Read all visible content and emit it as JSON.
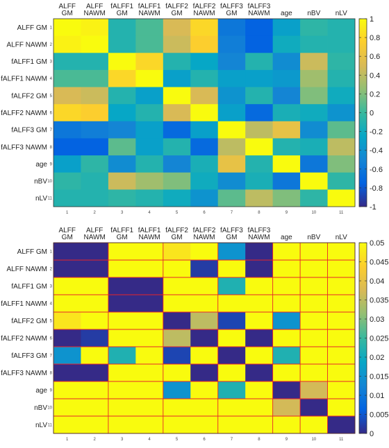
{
  "chart_data": [
    {
      "type": "heatmap",
      "title": "",
      "col_labels": [
        [
          "ALFF",
          "GM"
        ],
        [
          "ALFF",
          "NAWM"
        ],
        [
          "fALFF1",
          "GM"
        ],
        [
          "fALFF1",
          "NAWM"
        ],
        [
          "fALFF2",
          "GM"
        ],
        [
          "fALFF2",
          "NAWM"
        ],
        [
          "fALFF3",
          "GM"
        ],
        [
          "fALFF3",
          "NAWM"
        ],
        [
          "age"
        ],
        [
          "nBV"
        ],
        [
          "nLV"
        ]
      ],
      "row_labels": [
        "ALFF GM",
        "ALFF NAWM",
        "fALFF1 GM",
        "fALFF1 NAWM",
        "fALFF2 GM",
        "fALFF2 NAWM",
        "fALFF3 GM",
        "fALFF3 NAWM",
        "age",
        "nBV",
        "nLV"
      ],
      "index_ticks": [
        "1",
        "2",
        "3",
        "4",
        "5",
        "6",
        "7",
        "8",
        "9",
        "10",
        "11"
      ],
      "colorbar": {
        "min": -1,
        "max": 1,
        "ticks": [
          "1",
          "0.8",
          "0.6",
          "0.4",
          "0.2",
          "0",
          "-0.2",
          "-0.4",
          "-0.6",
          "-0.8",
          "-1"
        ],
        "tick_values": [
          1,
          0.8,
          0.6,
          0.4,
          0.2,
          0,
          -0.2,
          -0.4,
          -0.6,
          -0.8,
          -1
        ]
      },
      "values": [
        [
          1.0,
          0.95,
          -0.1,
          0.05,
          0.5,
          0.8,
          -0.6,
          -0.75,
          -0.3,
          -0.05,
          -0.1
        ],
        [
          0.95,
          1.0,
          -0.1,
          0.05,
          0.45,
          0.75,
          -0.55,
          -0.75,
          -0.2,
          -0.1,
          -0.1
        ],
        [
          -0.1,
          -0.1,
          1.0,
          0.8,
          -0.1,
          -0.25,
          -0.5,
          -0.1,
          -0.45,
          0.45,
          -0.05
        ],
        [
          0.05,
          0.05,
          0.8,
          1.0,
          -0.3,
          -0.1,
          -0.3,
          -0.3,
          -0.35,
          0.3,
          -0.1
        ],
        [
          0.5,
          0.45,
          -0.1,
          -0.3,
          1.0,
          0.5,
          -0.4,
          -0.1,
          -0.5,
          0.2,
          -0.2
        ],
        [
          0.8,
          0.75,
          -0.25,
          -0.1,
          0.5,
          1.0,
          -0.3,
          -0.7,
          -0.15,
          -0.2,
          -0.4
        ],
        [
          -0.6,
          -0.55,
          -0.5,
          -0.3,
          -0.7,
          -0.3,
          1.0,
          0.4,
          0.6,
          -0.45,
          0.1
        ],
        [
          -0.75,
          -0.75,
          0.1,
          -0.3,
          -0.1,
          -0.7,
          0.4,
          1.0,
          -0.1,
          -0.15,
          0.4
        ],
        [
          -0.3,
          -0.05,
          -0.45,
          -0.1,
          -0.5,
          -0.15,
          0.6,
          -0.1,
          1.0,
          -0.6,
          0.2
        ],
        [
          -0.05,
          -0.1,
          0.45,
          0.3,
          0.2,
          -0.2,
          -0.45,
          -0.15,
          -0.6,
          1.0,
          -0.05
        ],
        [
          -0.1,
          -0.1,
          -0.05,
          -0.1,
          -0.2,
          -0.4,
          0.1,
          0.4,
          0.2,
          -0.05,
          1.0
        ]
      ]
    },
    {
      "type": "heatmap",
      "title": "",
      "col_labels": [
        [
          "ALFF",
          "GM"
        ],
        [
          "ALFF",
          "NAWM"
        ],
        [
          "fALFF1",
          "GM"
        ],
        [
          "fALFF1",
          "NAWM"
        ],
        [
          "fALFF2",
          "GM"
        ],
        [
          "fALFF2",
          "NAWM"
        ],
        [
          "fALFF3",
          "GM"
        ],
        [
          "fALFF3",
          "NAWM"
        ],
        [
          "age"
        ],
        [
          "nBV"
        ],
        [
          "nLV"
        ]
      ],
      "row_labels": [
        "ALFF GM",
        "ALFF NAWM",
        "fALFF1 GM",
        "fALFF1 NAWM",
        "fALFF2 GM",
        "fALFF2 NAWM",
        "fALFF3 GM",
        "fALFF3 NAWM",
        "age",
        "nBV",
        "nLV"
      ],
      "index_ticks": [
        "1",
        "2",
        "3",
        "4",
        "5",
        "6",
        "7",
        "8",
        "9",
        "10",
        "11"
      ],
      "colorbar": {
        "min": 0,
        "max": 0.05,
        "ticks": [
          "0.05",
          "0.045",
          "0.04",
          "0.035",
          "0.03",
          "0.025",
          "0.02",
          "0.015",
          "0.01",
          "0.005",
          "0"
        ],
        "tick_values": [
          0.05,
          0.045,
          0.04,
          0.035,
          0.03,
          0.025,
          0.02,
          0.015,
          0.01,
          0.005,
          0
        ]
      },
      "values": [
        [
          0,
          0,
          0.05,
          0.05,
          0.047,
          0.05,
          0.015,
          0,
          0.05,
          0.05,
          0.05
        ],
        [
          0,
          0,
          0.05,
          0.05,
          0.05,
          0.002,
          0.05,
          0,
          0.05,
          0.05,
          0.05
        ],
        [
          0.05,
          0.05,
          0,
          0,
          0.05,
          0.05,
          0.022,
          0.05,
          0.05,
          0.05,
          0.05
        ],
        [
          0.05,
          0.05,
          0,
          0,
          0.05,
          0.05,
          0.05,
          0.05,
          0.05,
          0.05,
          0.05
        ],
        [
          0.047,
          0.05,
          0.05,
          0.05,
          0,
          0.035,
          0.003,
          0.05,
          0.015,
          0.05,
          0.05
        ],
        [
          0,
          0.002,
          0.05,
          0.05,
          0.035,
          0,
          0.05,
          0,
          0.05,
          0.05,
          0.05
        ],
        [
          0.015,
          0.05,
          0.022,
          0.05,
          0.003,
          0.05,
          0,
          0.05,
          0.022,
          0.05,
          0.05
        ],
        [
          0,
          0,
          0.05,
          0.05,
          0.05,
          0,
          0.05,
          0,
          0.05,
          0.05,
          0.05
        ],
        [
          0.05,
          0.05,
          0.05,
          0.05,
          0.015,
          0.05,
          0.022,
          0.05,
          0,
          0.037,
          0.05
        ],
        [
          0.05,
          0.05,
          0.05,
          0.05,
          0.05,
          0.05,
          0.05,
          0.05,
          0.037,
          0,
          0.05
        ],
        [
          0.05,
          0.05,
          0.05,
          0.05,
          0.05,
          0.05,
          0.05,
          0.05,
          0.05,
          0.05,
          0
        ]
      ],
      "separator_color": "#e8242a"
    }
  ]
}
